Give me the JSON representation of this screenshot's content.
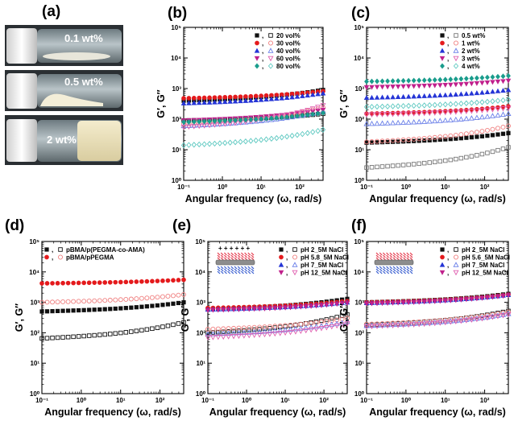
{
  "photo_panel": {
    "letter": "(a)",
    "vials": [
      {
        "label": "0.1 wt%"
      },
      {
        "label": "0.5 wt%"
      },
      {
        "label": "2 wt%"
      }
    ]
  },
  "colors": {
    "black": "#111111",
    "red": "#e41a1c",
    "blue": "#2535d6",
    "magenta": "#c0208c",
    "teal": "#1a9c8c",
    "pink": "#f08080",
    "light_blue": "#6a7fe8",
    "pink_magenta": "#e060b0",
    "light_teal": "#5cc8c0",
    "gray": "#777777"
  },
  "chart_data": [
    {
      "panel": "(b)",
      "type": "scatter",
      "xlabel": "Angular frequency (ω, rad/s)",
      "ylabel": "G′, G″",
      "x_scale": "log",
      "y_scale": "log",
      "xlim": [
        0.1,
        400
      ],
      "ylim": [
        1,
        100000
      ],
      "x_ticks": [
        "10⁻¹",
        "10⁰",
        "10¹",
        "10²"
      ],
      "y_ticks": [
        "10⁰",
        "10¹",
        "10²",
        "10³",
        "10⁴",
        "10⁵"
      ],
      "legend": {
        "sep": ",",
        "entries": [
          "20 vol%",
          "30 vol%",
          "40 vol%",
          "60 vol%",
          "80 vol%"
        ]
      },
      "series": [
        {
          "name": "20 vol%",
          "modulus": "G′",
          "color": "black",
          "marker": "square-filled",
          "start": 400,
          "end": 900
        },
        {
          "name": "20 vol%",
          "modulus": "G″",
          "color": "black",
          "marker": "square-open",
          "start": 90,
          "end": 150
        },
        {
          "name": "30 vol%",
          "modulus": "G′",
          "color": "red",
          "marker": "circle-filled",
          "start": 480,
          "end": 820
        },
        {
          "name": "30 vol%",
          "modulus": "G″",
          "color": "pink",
          "marker": "circle-open",
          "start": 70,
          "end": 240
        },
        {
          "name": "40 vol%",
          "modulus": "G′",
          "color": "blue",
          "marker": "triangle-up-filled",
          "start": 330,
          "end": 700
        },
        {
          "name": "40 vol%",
          "modulus": "G″",
          "color": "light_blue",
          "marker": "triangle-up-open",
          "start": 60,
          "end": 180
        },
        {
          "name": "60 vol%",
          "modulus": "G′",
          "color": "magenta",
          "marker": "triangle-down-filled",
          "start": 90,
          "end": 200
        },
        {
          "name": "60 vol%",
          "modulus": "G″",
          "color": "pink_magenta",
          "marker": "triangle-down-open",
          "start": 55,
          "end": 280
        },
        {
          "name": "80 vol%",
          "modulus": "G′",
          "color": "teal",
          "marker": "diamond-filled",
          "start": 80,
          "end": 160
        },
        {
          "name": "80 vol%",
          "modulus": "G″",
          "color": "light_teal",
          "marker": "diamond-open",
          "start": 14,
          "end": 45
        }
      ]
    },
    {
      "panel": "(c)",
      "type": "scatter",
      "xlabel": "Angular frequency (ω, rad/s)",
      "ylabel": "G′, G″",
      "x_scale": "log",
      "y_scale": "log",
      "xlim": [
        0.1,
        400
      ],
      "ylim": [
        1,
        100000
      ],
      "x_ticks": [
        "10⁻¹",
        "10⁰",
        "10¹",
        "10²"
      ],
      "y_ticks": [
        "10⁰",
        "10¹",
        "10²",
        "10³",
        "10⁴",
        "10⁵"
      ],
      "legend": {
        "sep": ",",
        "entries": [
          "0.5 wt%",
          "1 wt%",
          "2 wt%",
          "3 wt%",
          "4 wt%"
        ]
      },
      "series": [
        {
          "name": "0.5 wt%",
          "modulus": "G′",
          "color": "black",
          "marker": "square-filled",
          "start": 17,
          "end": 35
        },
        {
          "name": "0.5 wt%",
          "modulus": "G″",
          "color": "gray",
          "marker": "square-open",
          "start": 2.6,
          "end": 12
        },
        {
          "name": "1 wt%",
          "modulus": "G′",
          "color": "red",
          "marker": "circle-filled",
          "start": 150,
          "end": 260
        },
        {
          "name": "1 wt%",
          "modulus": "G″",
          "color": "pink",
          "marker": "circle-open",
          "start": 18,
          "end": 60
        },
        {
          "name": "2 wt%",
          "modulus": "G′",
          "color": "blue",
          "marker": "triangle-up-filled",
          "start": 500,
          "end": 900
        },
        {
          "name": "2 wt%",
          "modulus": "G″",
          "color": "light_blue",
          "marker": "triangle-up-open",
          "start": 70,
          "end": 150
        },
        {
          "name": "3 wt%",
          "modulus": "G′",
          "color": "magenta",
          "marker": "triangle-down-filled",
          "start": 1100,
          "end": 1800
        },
        {
          "name": "3 wt%",
          "modulus": "G″",
          "color": "pink_magenta",
          "marker": "triangle-down-open",
          "start": 140,
          "end": 230
        },
        {
          "name": "4 wt%",
          "modulus": "G′",
          "color": "teal",
          "marker": "diamond-filled",
          "start": 1700,
          "end": 2600
        },
        {
          "name": "4 wt%",
          "modulus": "G″",
          "color": "light_teal",
          "marker": "diamond-open",
          "start": 250,
          "end": 430
        }
      ]
    },
    {
      "panel": "(d)",
      "type": "scatter",
      "xlabel": "Angular frequency (ω, rad/s)",
      "ylabel": "G′, G″",
      "x_scale": "log",
      "y_scale": "log",
      "xlim": [
        0.1,
        400
      ],
      "ylim": [
        1,
        100000
      ],
      "x_ticks": [
        "10⁻¹",
        "10⁰",
        "10¹",
        "10²"
      ],
      "y_ticks": [
        "10⁰",
        "10¹",
        "10²",
        "10³",
        "10⁴",
        "10⁵"
      ],
      "legend": {
        "sep": ",",
        "entries": [
          "pBMA/p(PEGMA-co-AMA)",
          "pBMA/pPEGMA"
        ]
      },
      "series": [
        {
          "name": "pBMA/p(PEGMA-co-AMA)",
          "modulus": "G′",
          "color": "black",
          "marker": "square-filled",
          "start": 500,
          "end": 1000
        },
        {
          "name": "pBMA/p(PEGMA-co-AMA)",
          "modulus": "G″",
          "color": "black",
          "marker": "square-open",
          "start": 65,
          "end": 220
        },
        {
          "name": "pBMA/pPEGMA",
          "modulus": "G′",
          "color": "red",
          "marker": "circle-filled",
          "start": 4200,
          "end": 5500
        },
        {
          "name": "pBMA/pPEGMA",
          "modulus": "G″",
          "color": "pink",
          "marker": "circle-open",
          "start": 1000,
          "end": 1800
        }
      ]
    },
    {
      "panel": "(e)",
      "type": "scatter",
      "xlabel": "Angular frequency (ω, rad/s)",
      "ylabel": "G′, G″",
      "x_scale": "log",
      "y_scale": "log",
      "xlim": [
        0.1,
        400
      ],
      "ylim": [
        1,
        100000
      ],
      "x_ticks": [
        "10⁻¹",
        "10⁰",
        "10¹",
        "10²"
      ],
      "y_ticks": [
        "10⁰",
        "10¹",
        "10²",
        "10³",
        "10⁴",
        "10⁵"
      ],
      "legend": {
        "sep": ",",
        "entries": [
          "pH 2_5M NaCl",
          "pH 5.8_5M NaCl",
          "pH 7_5M NaCl",
          "pH 12_5M NaCl"
        ]
      },
      "inset_glyph": "+ + + + + +",
      "series": [
        {
          "name": "pH 2_5M NaCl",
          "modulus": "G′",
          "color": "black",
          "marker": "square-filled",
          "start": 600,
          "end": 1300
        },
        {
          "name": "pH 2_5M NaCl",
          "modulus": "G″",
          "color": "black",
          "marker": "square-open",
          "start": 100,
          "end": 400
        },
        {
          "name": "pH 5.8_5M NaCl",
          "modulus": "G′",
          "color": "red",
          "marker": "circle-filled",
          "start": 650,
          "end": 1100
        },
        {
          "name": "pH 5.8_5M NaCl",
          "modulus": "G″",
          "color": "pink",
          "marker": "circle-open",
          "start": 130,
          "end": 300
        },
        {
          "name": "pH 7_5M NaCl",
          "modulus": "G′",
          "color": "blue",
          "marker": "triangle-up-filled",
          "start": 580,
          "end": 1000
        },
        {
          "name": "pH 7_5M NaCl",
          "modulus": "G″",
          "color": "light_blue",
          "marker": "triangle-up-open",
          "start": 90,
          "end": 230
        },
        {
          "name": "pH 12_5M NaCl",
          "modulus": "G′",
          "color": "magenta",
          "marker": "triangle-down-filled",
          "start": 550,
          "end": 950
        },
        {
          "name": "pH 12_5M NaCl",
          "modulus": "G″",
          "color": "pink_magenta",
          "marker": "triangle-down-open",
          "start": 70,
          "end": 200
        }
      ]
    },
    {
      "panel": "(f)",
      "type": "scatter",
      "xlabel": "Angular frequency (ω, rad/s)",
      "ylabel": "G′, G″",
      "x_scale": "log",
      "y_scale": "log",
      "xlim": [
        0.1,
        400
      ],
      "ylim": [
        1,
        100000
      ],
      "x_ticks": [
        "10⁻¹",
        "10⁰",
        "10¹",
        "10²"
      ],
      "y_ticks": [
        "10⁰",
        "10¹",
        "10²",
        "10³",
        "10⁴",
        "10⁵"
      ],
      "legend": {
        "sep": ",",
        "entries": [
          "pH 2_5M NaCl",
          "pH 5.6_5M NaCl",
          "pH 7_5M NaCl",
          "pH 12_5M NaCl"
        ]
      },
      "series": [
        {
          "name": "pH 2_5M NaCl",
          "modulus": "G′",
          "color": "black",
          "marker": "square-filled",
          "start": 1000,
          "end": 1900
        },
        {
          "name": "pH 2_5M NaCl",
          "modulus": "G″",
          "color": "black",
          "marker": "square-open",
          "start": 180,
          "end": 520
        },
        {
          "name": "pH 5.6_5M NaCl",
          "modulus": "G′",
          "color": "red",
          "marker": "circle-filled",
          "start": 1000,
          "end": 1800
        },
        {
          "name": "pH 5.6_5M NaCl",
          "modulus": "G″",
          "color": "pink",
          "marker": "circle-open",
          "start": 190,
          "end": 480
        },
        {
          "name": "pH 7_5M NaCl",
          "modulus": "G′",
          "color": "blue",
          "marker": "triangle-up-filled",
          "start": 950,
          "end": 1750
        },
        {
          "name": "pH 7_5M NaCl",
          "modulus": "G″",
          "color": "light_blue",
          "marker": "triangle-up-open",
          "start": 170,
          "end": 420
        },
        {
          "name": "pH 12_5M NaCl",
          "modulus": "G′",
          "color": "magenta",
          "marker": "triangle-down-filled",
          "start": 900,
          "end": 1700
        },
        {
          "name": "pH 12_5M NaCl",
          "modulus": "G″",
          "color": "pink_magenta",
          "marker": "triangle-down-open",
          "start": 160,
          "end": 400
        }
      ]
    }
  ]
}
